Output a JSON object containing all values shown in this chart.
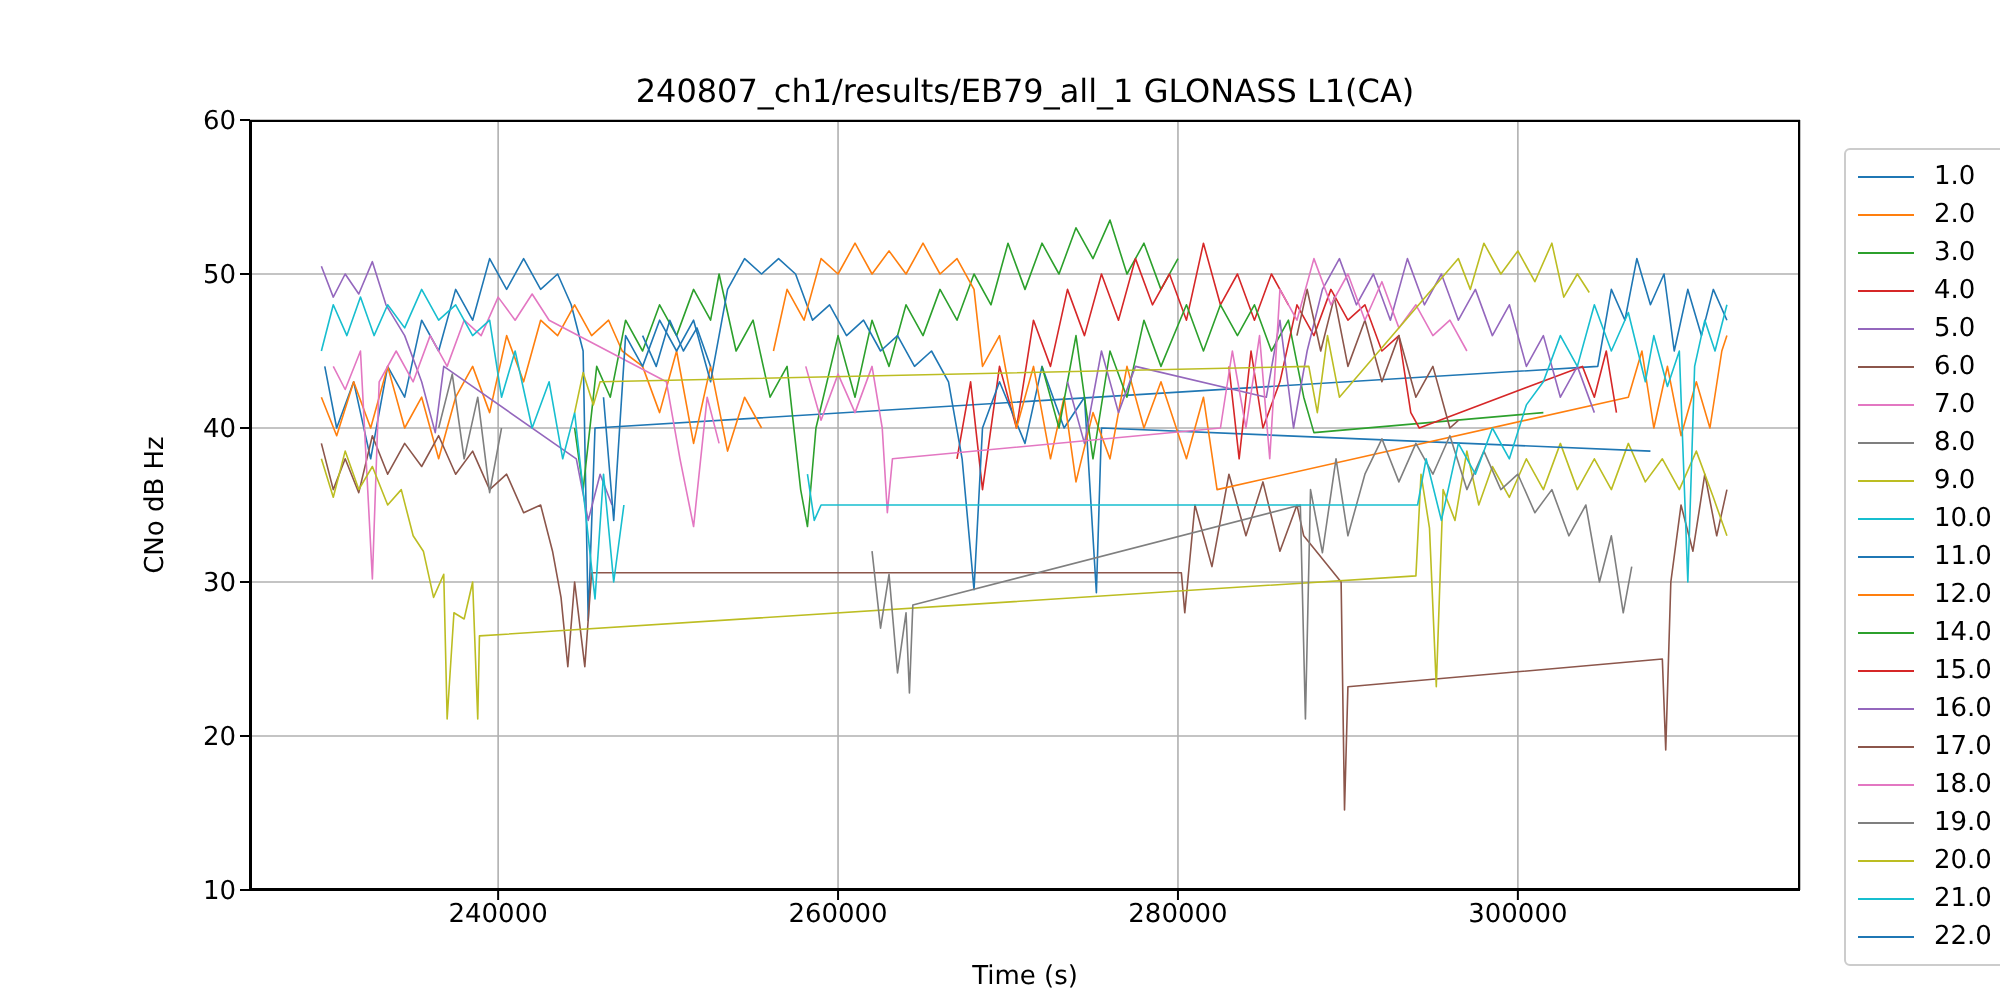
{
  "chart_data": {
    "type": "line",
    "title": "240807_ch1/results/EB79_all_1 GLONASS L1(CA)",
    "xlabel": "Time (s)",
    "ylabel": "CNo dB Hz",
    "xlim": [
      225400,
      316600
    ],
    "xticks": [
      240000,
      260000,
      280000,
      300000
    ],
    "ylim": [
      10,
      60
    ],
    "yticks": [
      10,
      20,
      30,
      40,
      50,
      60
    ],
    "grid": true,
    "legend": "right",
    "series": [
      {
        "name": "1.0",
        "color": "#1f77b4",
        "x": [
          229800,
          230500,
          231500,
          232500,
          233500,
          234500,
          235500,
          236500,
          237500,
          238500,
          239500,
          240500,
          241500,
          242500,
          243500,
          244300,
          245000,
          245300,
          245700,
          304700,
          305500,
          306300,
          307000,
          307800,
          308600,
          309200,
          310000,
          310800,
          311500,
          312300
        ],
        "values": [
          44,
          40,
          43,
          38,
          44,
          42,
          47,
          45,
          49,
          47,
          51,
          49,
          51,
          49,
          50,
          48,
          45,
          27.5,
          40,
          44,
          49,
          47,
          51,
          48,
          50,
          45,
          49,
          46,
          49,
          47
        ]
      },
      {
        "name": "2.0",
        "color": "#ff7f0e",
        "x": [
          229600,
          230500,
          231500,
          232500,
          233500,
          234500,
          235500,
          236500,
          237500,
          238500,
          239500,
          240500,
          241500,
          242500,
          243500,
          244500,
          245500,
          246500,
          247300,
          248500,
          249500,
          250500,
          251500,
          252500,
          253500,
          254500,
          255500
        ],
        "values": [
          42,
          39.5,
          43,
          40,
          44,
          40,
          42,
          38,
          42,
          44,
          41,
          46,
          43,
          47,
          46,
          48,
          46,
          47,
          45,
          44,
          41,
          45,
          39,
          44,
          38.5,
          42,
          40
        ]
      },
      {
        "name": "3.0",
        "color": "#2ca02c",
        "x": [
          244500,
          245000,
          245800,
          246600,
          247500,
          248500,
          249500,
          250500,
          251500,
          252500,
          253000,
          254000,
          255000,
          256000,
          257000,
          257800,
          258200,
          258700,
          260000,
          261000,
          262000,
          263000,
          264000,
          265000,
          266000,
          267000,
          268000,
          269000,
          270000,
          271000,
          272000,
          273000,
          274000,
          275000,
          276000,
          277000,
          278000,
          279000,
          280000
        ],
        "values": [
          40,
          36,
          44,
          42,
          47,
          45,
          48,
          46,
          49,
          47,
          50,
          45,
          47,
          42,
          44,
          36,
          33.6,
          40,
          46,
          42,
          47,
          44,
          48,
          46,
          49,
          47,
          50,
          48,
          52,
          49,
          52,
          50,
          53,
          51,
          53.5,
          50,
          52,
          49,
          51
        ]
      },
      {
        "name": "4.0",
        "color": "#d62728",
        "x": [
          267000,
          267800,
          268500,
          269500,
          270500,
          271500,
          272500,
          273500,
          274500,
          275500,
          276500,
          277500,
          278500,
          279500,
          280500,
          281500,
          282500,
          283500,
          284500,
          285500,
          286500
        ],
        "values": [
          38,
          43,
          36,
          44,
          40,
          47,
          44,
          49,
          46,
          50,
          47,
          51,
          48,
          50,
          47,
          52,
          48,
          50,
          47,
          50,
          48
        ]
      },
      {
        "name": "5.0",
        "color": "#9467bd",
        "x": [
          229600,
          230300,
          231000,
          231800,
          232600,
          233400,
          234500,
          235500,
          236300,
          236800,
          244600,
          245300,
          246000,
          246700
        ],
        "values": [
          50.5,
          48.5,
          50,
          48.7,
          50.8,
          48,
          46,
          43,
          39.7,
          44,
          38,
          34,
          37,
          35
        ]
      },
      {
        "name": "6.0",
        "color": "#8c564b",
        "x": [
          229600,
          230300,
          231000,
          231800,
          232600,
          233500,
          234500,
          235500,
          236500,
          237500,
          238500,
          239500,
          240500,
          241500,
          242500,
          243200,
          243700,
          244100,
          244500,
          245100,
          245500,
          280200,
          280400,
          281000,
          282000,
          283000,
          284000,
          285000,
          286000,
          287000,
          287400,
          289600,
          289800,
          290000,
          308500,
          308700,
          309000,
          309600,
          310300,
          311000,
          311700,
          312300
        ],
        "values": [
          39,
          36,
          38,
          35.8,
          39.5,
          37,
          39,
          37.5,
          39.5,
          37,
          38.5,
          36,
          37,
          34.5,
          35,
          32,
          29,
          24.5,
          30,
          24.5,
          30.6,
          30.6,
          28,
          35,
          31,
          37,
          33,
          36.5,
          32,
          35,
          33,
          30,
          15.2,
          23.2,
          25,
          19.1,
          30,
          35,
          32,
          37,
          33,
          36
        ]
      },
      {
        "name": "7.0",
        "color": "#e377c2",
        "x": [
          230300,
          231000,
          231900,
          232600,
          233000,
          234000,
          235000,
          236000,
          237000,
          238000,
          239000,
          240000,
          241000,
          242000,
          243000,
          249900,
          250700,
          251500,
          252300,
          253000
        ],
        "values": [
          44,
          42.5,
          45,
          30.2,
          43,
          45,
          43,
          46,
          44,
          47,
          46,
          48.5,
          47,
          48.7,
          47,
          43,
          38,
          33.6,
          42,
          39
        ]
      },
      {
        "name": "8.0",
        "color": "#7f7f7f",
        "x": [
          236500,
          237300,
          238000,
          238800,
          239500,
          240200
        ],
        "values": [
          40,
          43.5,
          38,
          42,
          35.8,
          40
        ]
      },
      {
        "name": "9.0",
        "color": "#bcbd22",
        "x": [
          229600,
          230300,
          231000,
          231800,
          232600,
          233500,
          234300,
          235000,
          235600,
          236200,
          236800,
          237000,
          237400,
          238000,
          238500,
          238800,
          238900,
          294000,
          294300,
          294800,
          295200,
          295600,
          296300,
          297000,
          297700,
          298500,
          299500,
          300500,
          301500,
          302500,
          303500,
          304500,
          305500,
          306500,
          307500,
          308500,
          309500,
          310500,
          311500,
          312300
        ],
        "values": [
          38,
          35.5,
          38.5,
          36,
          37.5,
          35,
          36,
          33,
          32,
          29,
          30.5,
          21.1,
          28,
          27.6,
          30,
          21.1,
          26.5,
          30.4,
          37,
          33.5,
          23.2,
          36,
          34,
          38.5,
          35,
          37.5,
          35.5,
          38,
          36,
          39,
          36,
          38,
          36,
          39,
          36.5,
          38,
          36,
          38.5,
          35.5,
          33
        ]
      },
      {
        "name": "10.0",
        "color": "#17becf",
        "x": [
          229600,
          230300,
          231100,
          231900,
          232700,
          233500,
          234500,
          235500,
          236500,
          237500,
          238500,
          239500,
          240200,
          241000,
          242000,
          243000,
          243800,
          244500,
          245700,
          246200,
          246800,
          247400
        ],
        "values": [
          45,
          48,
          46,
          48.5,
          46,
          48,
          46.5,
          49,
          47,
          48,
          46,
          47,
          42,
          45,
          40,
          43,
          38,
          41,
          28.9,
          37,
          30,
          35
        ]
      },
      {
        "name": "11.0",
        "color": "#1f77b4",
        "x": [
          246200,
          246800,
          247500,
          248500,
          249500,
          250500,
          251500,
          252500,
          253500,
          254500,
          255500,
          256500,
          257500,
          258500,
          259500,
          260500,
          261500,
          262500,
          263500,
          264500,
          265500,
          266500,
          267300,
          268000,
          268500,
          269500,
          271000,
          272000,
          273300,
          274500,
          275200,
          275500,
          307800
        ],
        "values": [
          42,
          34,
          46,
          44,
          47,
          45,
          47,
          43,
          49,
          51,
          50,
          51,
          50,
          47,
          48,
          46,
          47,
          45,
          46,
          44,
          45,
          43,
          38,
          29.5,
          40,
          43,
          39,
          44,
          40,
          42,
          29.3,
          40,
          38.5
        ]
      },
      {
        "name": "12.0",
        "color": "#ff7f0e",
        "x": [
          256200,
          257000,
          258000,
          259000,
          260000,
          261000,
          262000,
          263000,
          264000,
          265000,
          266000,
          267000,
          268000,
          268500,
          269500,
          270500,
          271500,
          272500,
          273300,
          274000,
          275000,
          276000,
          277000,
          278000,
          279000,
          280500,
          281500,
          282300,
          306500,
          307300,
          308000,
          308800,
          309600,
          310500,
          311300,
          312000,
          312300
        ],
        "values": [
          45,
          49,
          47,
          51,
          50,
          52,
          50,
          51.5,
          50,
          52,
          50,
          51,
          49,
          44,
          46,
          40,
          44,
          38,
          42,
          36.5,
          41,
          38,
          44,
          40,
          43,
          38,
          42,
          36,
          42,
          45,
          40,
          44,
          39.5,
          43,
          40,
          45,
          46
        ]
      },
      {
        "name": "14.0",
        "color": "#2ca02c",
        "x": [
          272000,
          273000,
          274000,
          275000,
          276000,
          277000,
          278000,
          279000,
          280500,
          281500,
          282500,
          283500,
          284500,
          285500,
          286500,
          287400,
          288000,
          301500
        ],
        "values": [
          44,
          40,
          46,
          38,
          45,
          42,
          47,
          44,
          48,
          45,
          48,
          46,
          48,
          45,
          47,
          42,
          39.7,
          41
        ]
      },
      {
        "name": "15.0",
        "color": "#d62728",
        "x": [
          283000,
          283600,
          284300,
          285000,
          286000,
          287000,
          288000,
          289000,
          290000,
          291000,
          292000,
          293000,
          293700,
          294200,
          303800,
          304500,
          305200,
          305800
        ],
        "values": [
          44,
          38,
          45,
          40,
          43,
          48,
          46,
          49,
          47,
          48,
          45,
          46,
          41,
          40,
          44,
          42,
          45,
          41
        ]
      },
      {
        "name": "16.0",
        "color": "#9467bd",
        "x": [
          273500,
          274500,
          275500,
          276500,
          277500,
          285200,
          286000,
          286800,
          287600,
          288500,
          289500,
          290500,
          291500,
          292500,
          293500,
          294500,
          295500,
          296500,
          297500,
          298500,
          299500,
          300500,
          301500,
          302500,
          303500,
          304500
        ],
        "values": [
          43,
          39,
          45,
          41,
          44,
          42,
          47,
          40,
          45,
          49,
          51,
          48,
          50,
          47,
          51,
          48,
          50,
          47,
          49,
          46,
          48,
          44,
          46,
          42,
          44,
          41
        ]
      },
      {
        "name": "17.0",
        "color": "#8c564b",
        "x": [
          287000,
          287600,
          288400,
          289200,
          290000,
          291000,
          292000,
          293000,
          294000,
          295000,
          296000,
          296500
        ],
        "values": [
          46,
          49,
          45,
          48.5,
          44,
          47,
          43,
          46,
          42,
          44,
          40,
          40.5
        ]
      },
      {
        "name": "18.0",
        "color": "#e377c2",
        "x": [
          258100,
          259000,
          260000,
          261000,
          262000,
          262600,
          262900,
          263200,
          282500,
          283200,
          284000,
          284800,
          285400,
          286000,
          287000,
          288000,
          289000,
          290000,
          291000,
          292000,
          293000,
          294000,
          295000,
          296000,
          297000
        ],
        "values": [
          44,
          40.5,
          43.5,
          41,
          44,
          40,
          34.5,
          38,
          40,
          45,
          40,
          46,
          38,
          49,
          47,
          51,
          48,
          50,
          47,
          49.5,
          46.5,
          48,
          46,
          47,
          45
        ]
      },
      {
        "name": "19.0",
        "color": "#7f7f7f",
        "x": [
          262000,
          262500,
          263000,
          263500,
          264000,
          264200,
          264400,
          287200,
          287500,
          287800,
          288500,
          289300,
          290000,
          291000,
          292000,
          293000,
          294000,
          295000,
          296000,
          297000,
          298000,
          299000,
          300000,
          301000,
          302000,
          303000,
          304000,
          304800,
          305500,
          306200,
          306700
        ],
        "values": [
          32,
          27,
          30.5,
          24.1,
          28,
          22.8,
          28.5,
          35,
          21.1,
          36,
          31.9,
          38,
          33,
          37,
          39.3,
          36.5,
          39,
          37,
          39.5,
          36,
          38.5,
          36,
          37,
          34.5,
          36,
          33,
          35,
          30,
          33,
          28,
          31
        ]
      },
      {
        "name": "20.0",
        "color": "#bcbd22",
        "x": [
          244500,
          245000,
          245600,
          246000,
          287700,
          288200,
          288800,
          289500,
          296500,
          297200,
          298000,
          299000,
          300000,
          301000,
          302000,
          302700,
          303500,
          304200
        ],
        "values": [
          41,
          43.6,
          41.5,
          43,
          44,
          41,
          46,
          42,
          51,
          49,
          52,
          50,
          51.5,
          49.5,
          52,
          48.5,
          50,
          48.8
        ]
      },
      {
        "name": "21.0",
        "color": "#17becf",
        "x": [
          258200,
          258600,
          259000,
          294100,
          294600,
          295500,
          296500,
          297500,
          298500,
          299500,
          300500,
          301500,
          302500,
          303500,
          304500,
          305500,
          306500,
          307500,
          308000,
          308800,
          309500,
          310000,
          310400,
          311000,
          311600,
          312300
        ],
        "values": [
          37,
          34,
          35,
          35,
          38,
          34,
          39,
          37,
          40,
          38,
          41.5,
          43,
          46,
          44,
          48,
          45,
          47.5,
          43,
          46,
          42.7,
          45,
          30,
          44,
          47,
          45,
          48
        ]
      },
      {
        "name": "22.0",
        "color": "#1f77b4",
        "x": [
          248500,
          249300,
          250100,
          250900,
          251700,
          252500
        ],
        "values": [
          46,
          44,
          47,
          45,
          46.5,
          44
        ]
      }
    ]
  }
}
